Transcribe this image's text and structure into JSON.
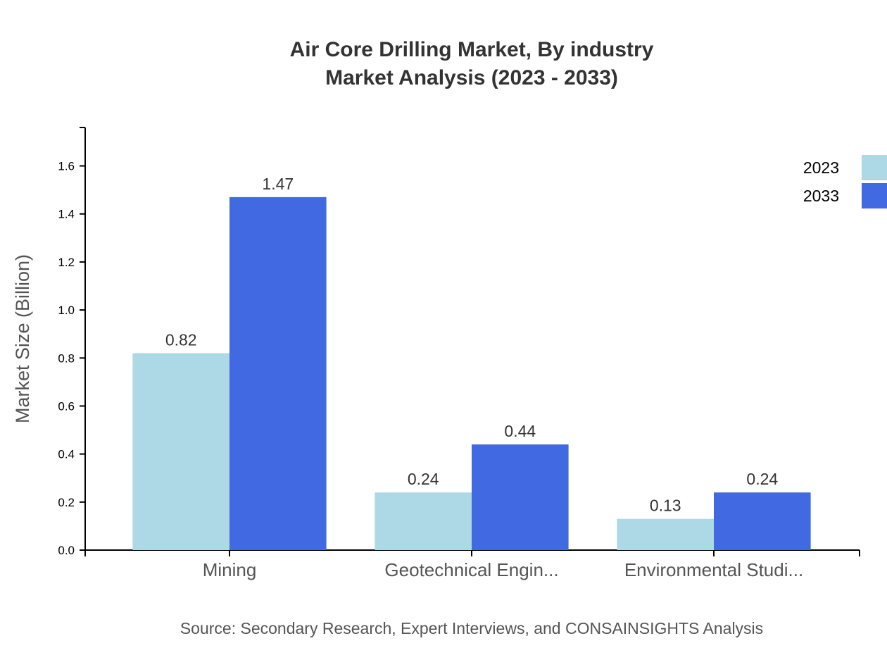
{
  "chart_data": {
    "type": "bar",
    "title": "Air Core Drilling Market, By industry",
    "subtitle": "Market Analysis (2023 - 2033)",
    "xlabel": "",
    "ylabel": "Market Size (Billion)",
    "ylim": [
      0,
      1.76
    ],
    "yticks": [
      "0.0",
      "0.2",
      "0.4",
      "0.6",
      "0.8",
      "1.0",
      "1.2",
      "1.4",
      "1.6"
    ],
    "categories": [
      "Mining",
      "Geotechnical Engin...",
      "Environmental Studi..."
    ],
    "series": [
      {
        "name": "2023",
        "color": "#add8e6",
        "values": [
          0.82,
          0.24,
          0.13
        ],
        "labels": [
          "0.82",
          "0.24",
          "0.13"
        ]
      },
      {
        "name": "2033",
        "color": "#4169e1",
        "values": [
          1.47,
          0.44,
          0.24
        ],
        "labels": [
          "1.47",
          "0.44",
          "0.24"
        ]
      }
    ],
    "grid": false,
    "legend": "top-right",
    "source": "Source: Secondary Research, Expert Interviews, and CONSAINSIGHTS Analysis"
  }
}
